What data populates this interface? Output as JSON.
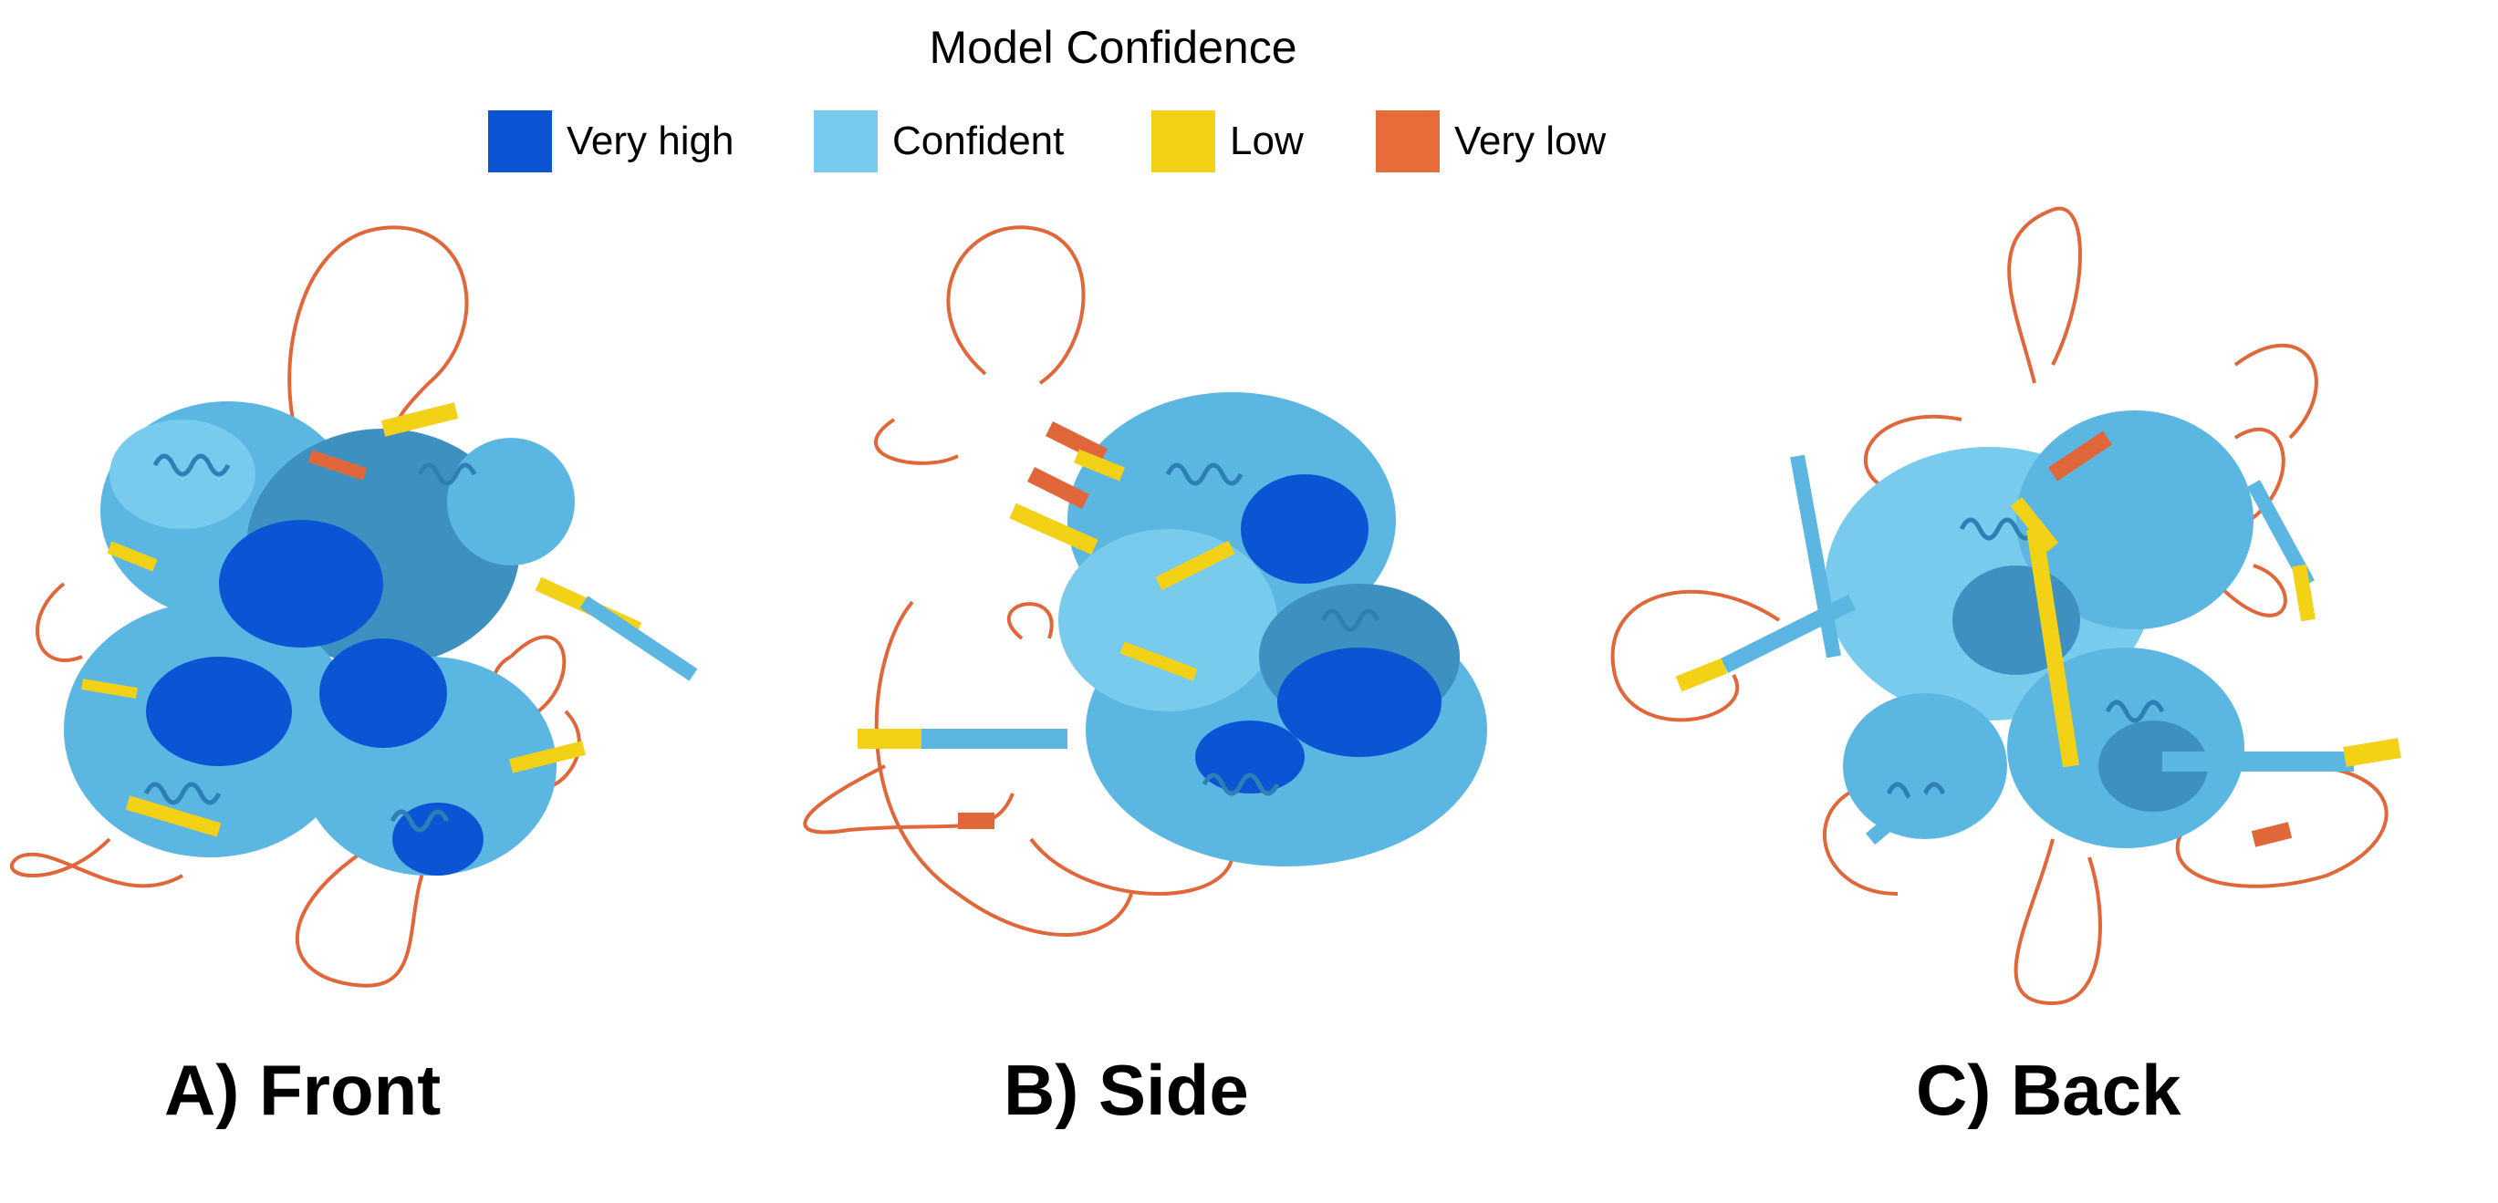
{
  "legend": {
    "title": "Model Confidence",
    "items": [
      {
        "label": "Very high",
        "color": "#0b55d4"
      },
      {
        "label": "Confident",
        "color": "#78cbed"
      },
      {
        "label": "Low",
        "color": "#f2d117"
      },
      {
        "label": "Very low",
        "color": "#e66c3a"
      }
    ]
  },
  "panels": [
    {
      "label": "A) Front"
    },
    {
      "label": "B) Side"
    },
    {
      "label": "C) Back"
    }
  ],
  "colors": {
    "very_high": "#0b55d4",
    "confident": "#5bb6e2",
    "confident_dark": "#3d90c0",
    "low": "#f2d117",
    "very_low": "#e0673a"
  }
}
